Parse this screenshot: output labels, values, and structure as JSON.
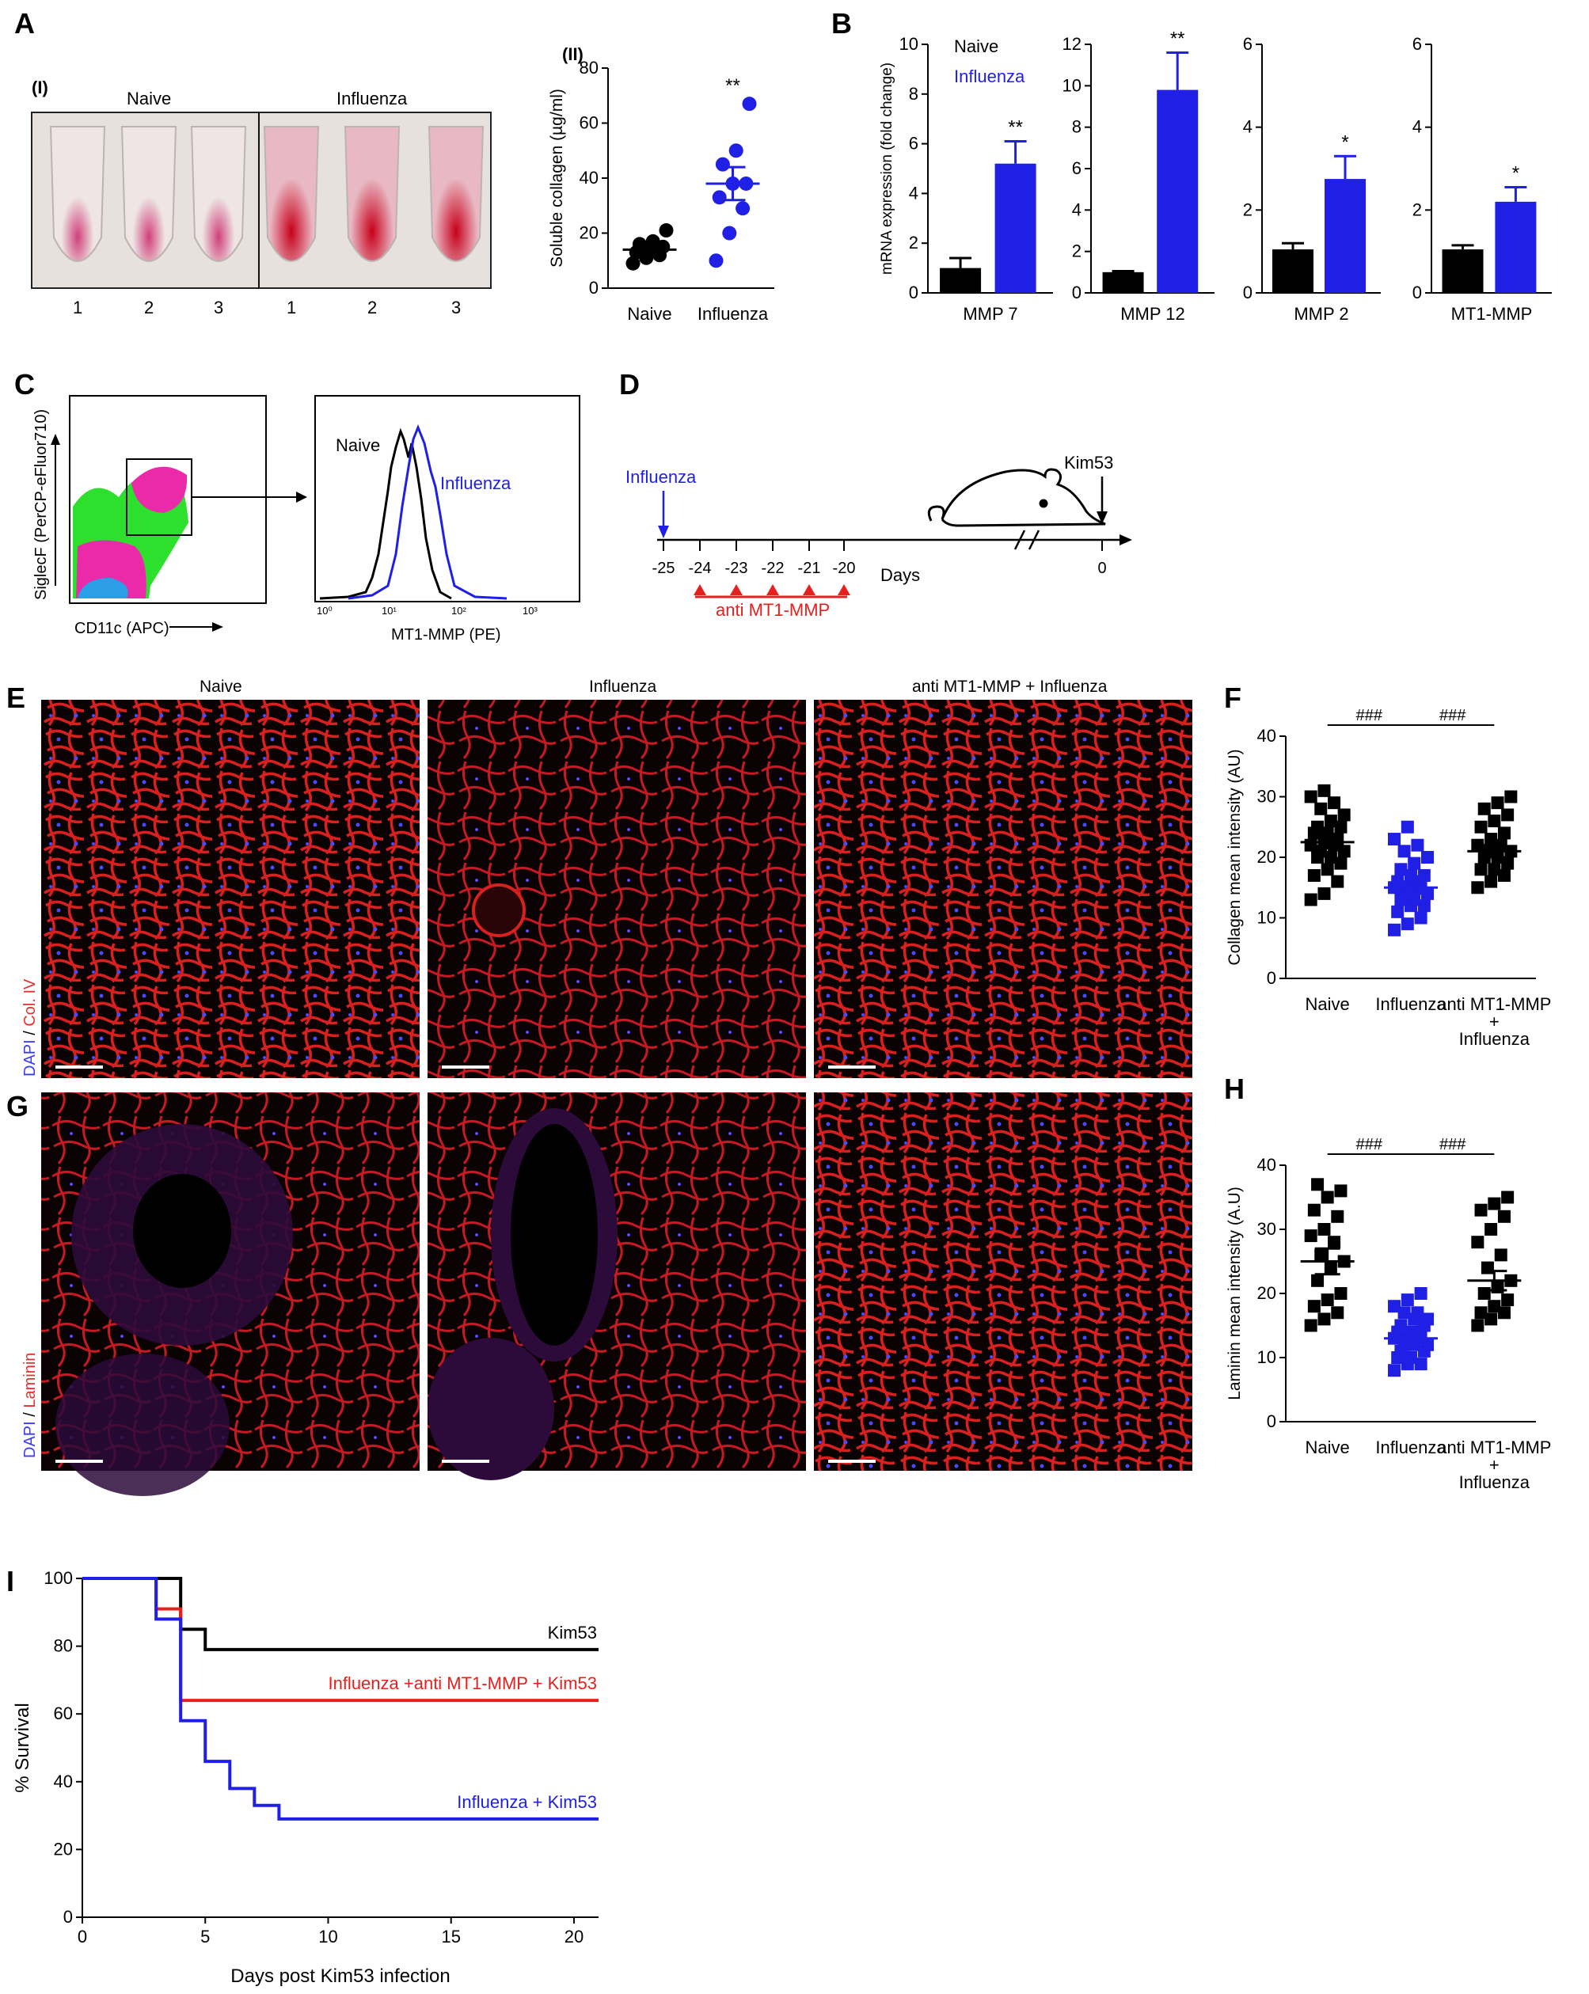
{
  "panels": {
    "A": {
      "letter": "A",
      "photo_label": "(I)",
      "photo_groups": [
        "Naive",
        "Influenza"
      ],
      "tube_numbers": [
        "1",
        "2",
        "3",
        "1",
        "2",
        "3"
      ],
      "scatter_label": "(II)",
      "sig": "**"
    },
    "B": {
      "letter": "B",
      "legend": [
        "Naive",
        "Influenza"
      ]
    },
    "C": {
      "letter": "C",
      "dot_ylabel": "SiglecF (PerCP-eFluor710)",
      "dot_xlabel": "CD11c (APC)",
      "hist_xlabel": "MT1-MMP (PE)",
      "hist_ticks": [
        "10⁰",
        "10¹",
        "10²",
        "10³"
      ],
      "hist_legend": [
        "Naive",
        "Influenza"
      ]
    },
    "D": {
      "letter": "D",
      "influenza": "Influenza",
      "kim53": "Kim53",
      "ticks": [
        "-25",
        "-24",
        "-23",
        "-22",
        "-21",
        "-20",
        "0"
      ],
      "days": "Days",
      "treatment": "anti MT1-MMP"
    },
    "E": {
      "letter": "E",
      "columns": [
        "Naive",
        "Influenza",
        "anti MT1-MMP + Influenza"
      ],
      "stain_dapi": "DAPI",
      "stain_sep": " / ",
      "stain": "Col. IV"
    },
    "F": {
      "letter": "F",
      "sig": [
        "###",
        "###"
      ]
    },
    "G": {
      "letter": "G",
      "stain_dapi": "DAPI",
      "stain_sep": " / ",
      "stain": "Laminin"
    },
    "H": {
      "letter": "H",
      "sig": [
        "###",
        "###"
      ]
    },
    "I": {
      "letter": "I"
    }
  },
  "colors": {
    "naive": "#000000",
    "influenza": "#1f1fe6",
    "treated": "#000000",
    "survival_kim53": "#000000",
    "survival_anti": "#e6201e",
    "survival_flu": "#1f1fe6",
    "treatment_mark": "#e6201e",
    "stain_red": "#e63030",
    "stain_blue": "#3a3aff"
  },
  "chart_data": [
    {
      "id": "A2",
      "type": "scatter",
      "ylabel": "Soluble collagen (µg/ml)",
      "ylim": [
        0,
        80
      ],
      "yticks": [
        0,
        20,
        40,
        60,
        80
      ],
      "categories": [
        "Naive",
        "Influenza"
      ],
      "series": [
        {
          "values": [
            9,
            11,
            12,
            13,
            14,
            15,
            16,
            17,
            21
          ],
          "mean": 14
        },
        {
          "values": [
            10,
            20,
            29,
            33,
            38,
            38,
            45,
            50,
            67
          ],
          "mean": 38,
          "sem": 6
        }
      ],
      "annotations": [
        "",
        "**"
      ]
    },
    {
      "id": "B1",
      "type": "bar",
      "ylabel": "mRNA expression (fold change)",
      "xlabel": "MMP 7",
      "ylim": [
        0,
        10
      ],
      "yticks": [
        0,
        2,
        4,
        6,
        8,
        10
      ],
      "categories": [
        "Naive",
        "Influenza"
      ],
      "values": [
        1.0,
        5.2
      ],
      "errors": [
        0.4,
        0.9
      ],
      "annotations": [
        "",
        "**"
      ]
    },
    {
      "id": "B2",
      "type": "bar",
      "xlabel": "MMP 12",
      "ylim": [
        0,
        12
      ],
      "yticks": [
        0,
        2,
        4,
        6,
        8,
        10,
        12
      ],
      "categories": [
        "Naive",
        "Influenza"
      ],
      "values": [
        1.0,
        9.8
      ],
      "errors": [
        0.05,
        1.8
      ],
      "annotations": [
        "",
        "**"
      ]
    },
    {
      "id": "B3",
      "type": "bar",
      "xlabel": "MMP 2",
      "ylim": [
        0,
        6
      ],
      "yticks": [
        0,
        2,
        4,
        6
      ],
      "categories": [
        "Naive",
        "Influenza"
      ],
      "values": [
        1.05,
        2.75
      ],
      "errors": [
        0.15,
        0.55
      ],
      "annotations": [
        "",
        "*"
      ]
    },
    {
      "id": "B4",
      "type": "bar",
      "xlabel": "MT1-MMP",
      "ylim": [
        0,
        6
      ],
      "yticks": [
        0,
        2,
        4,
        6
      ],
      "categories": [
        "Naive",
        "Influenza"
      ],
      "values": [
        1.05,
        2.2
      ],
      "errors": [
        0.1,
        0.35
      ],
      "annotations": [
        "",
        "*"
      ]
    },
    {
      "id": "F",
      "type": "scatter",
      "ylabel": "Collagen mean intensity (AU)",
      "ylim": [
        0,
        40
      ],
      "yticks": [
        0,
        10,
        20,
        30,
        40
      ],
      "categories": [
        "Naive",
        "Influenza",
        "anti MT1-MMP + Influenza"
      ],
      "series": [
        {
          "values": [
            13,
            14,
            16,
            17,
            18,
            19,
            20,
            20,
            21,
            21,
            22,
            22,
            23,
            23,
            24,
            24,
            25,
            25,
            26,
            27,
            28,
            29,
            30,
            31
          ],
          "mean": 22.5,
          "sem": 1
        },
        {
          "values": [
            8,
            9,
            10,
            11,
            12,
            12,
            13,
            13,
            14,
            14,
            15,
            15,
            15,
            16,
            16,
            17,
            17,
            18,
            19,
            20,
            21,
            22,
            23,
            25
          ],
          "mean": 15,
          "sem": 1
        },
        {
          "values": [
            15,
            16,
            17,
            18,
            18,
            19,
            20,
            20,
            21,
            21,
            22,
            22,
            23,
            24,
            25,
            26,
            27,
            28,
            29,
            30
          ],
          "mean": 21,
          "sem": 1
        }
      ],
      "annotations": [
        "###",
        "###"
      ]
    },
    {
      "id": "H",
      "type": "scatter",
      "ylabel": "Laminin mean intensity (A.U)",
      "ylim": [
        0,
        40
      ],
      "yticks": [
        0,
        10,
        20,
        30,
        40
      ],
      "categories": [
        "Naive",
        "Influenza",
        "anti MT1-MMP + Influenza"
      ],
      "series": [
        {
          "values": [
            15,
            16,
            17,
            18,
            19,
            20,
            22,
            24,
            25,
            26,
            28,
            29,
            30,
            32,
            33,
            35,
            36,
            37
          ],
          "mean": 25,
          "sem": 2
        },
        {
          "values": [
            8,
            9,
            9,
            10,
            10,
            11,
            11,
            12,
            12,
            12,
            13,
            13,
            13,
            14,
            14,
            14,
            15,
            15,
            16,
            16,
            17,
            17,
            18,
            19,
            20
          ],
          "mean": 13,
          "sem": 0.6
        },
        {
          "values": [
            15,
            16,
            17,
            17,
            18,
            19,
            20,
            21,
            22,
            24,
            26,
            28,
            30,
            32,
            33,
            34,
            35
          ],
          "mean": 22,
          "sem": 1.5
        }
      ],
      "annotations": [
        "###",
        "###"
      ]
    },
    {
      "id": "I",
      "type": "line",
      "xlabel": "Days post Kim53 infection",
      "ylabel": "% Survival",
      "xlim": [
        0,
        21
      ],
      "ylim": [
        0,
        100
      ],
      "xticks": [
        0,
        5,
        10,
        15,
        20
      ],
      "yticks": [
        0,
        20,
        40,
        60,
        80,
        100
      ],
      "series": [
        {
          "name": "Kim53",
          "x": [
            0,
            4,
            4,
            5,
            5,
            21
          ],
          "y": [
            100,
            100,
            85,
            85,
            79,
            79
          ]
        },
        {
          "name": "Influenza +anti MT1-MMP + Kim53",
          "x": [
            0,
            3,
            3,
            4,
            4,
            21
          ],
          "y": [
            100,
            100,
            91,
            91,
            64,
            64
          ]
        },
        {
          "name": "Influenza + Kim53",
          "x": [
            0,
            3,
            3,
            4,
            4,
            5,
            5,
            6,
            6,
            7,
            7,
            8,
            8,
            21
          ],
          "y": [
            100,
            100,
            88,
            88,
            58,
            58,
            46,
            46,
            38,
            38,
            33,
            33,
            29,
            29
          ]
        }
      ]
    }
  ]
}
